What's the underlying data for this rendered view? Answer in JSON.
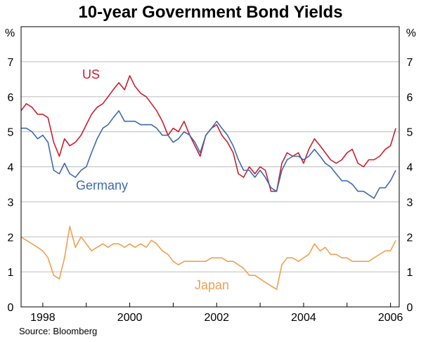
{
  "chart_data": {
    "type": "line",
    "title": "10-year Government Bond Yields",
    "ylabel_left": "%",
    "ylabel_right": "%",
    "ylim": [
      0,
      8
    ],
    "yticks": [
      0,
      1,
      2,
      3,
      4,
      5,
      6,
      7
    ],
    "xlim": [
      1997.5,
      2006.2
    ],
    "xticks": [
      1998,
      2000,
      2002,
      2004,
      2006
    ],
    "xtick_labels": [
      "1998",
      "2000",
      "2002",
      "2004",
      "2006"
    ],
    "grid": true,
    "series": [
      {
        "name": "US",
        "color": "#c8202f",
        "x": [
          1997.5,
          1997.62,
          1997.75,
          1997.88,
          1998.0,
          1998.12,
          1998.25,
          1998.38,
          1998.5,
          1998.62,
          1998.75,
          1998.88,
          1999.0,
          1999.12,
          1999.25,
          1999.38,
          1999.5,
          1999.62,
          1999.75,
          1999.88,
          2000.0,
          2000.12,
          2000.25,
          2000.38,
          2000.5,
          2000.62,
          2000.75,
          2000.88,
          2001.0,
          2001.12,
          2001.25,
          2001.38,
          2001.5,
          2001.62,
          2001.75,
          2001.88,
          2002.0,
          2002.12,
          2002.25,
          2002.38,
          2002.5,
          2002.62,
          2002.75,
          2002.88,
          2003.0,
          2003.12,
          2003.25,
          2003.38,
          2003.5,
          2003.62,
          2003.75,
          2003.88,
          2004.0,
          2004.12,
          2004.25,
          2004.38,
          2004.5,
          2004.62,
          2004.75,
          2004.88,
          2005.0,
          2005.12,
          2005.25,
          2005.38,
          2005.5,
          2005.62,
          2005.75,
          2005.88,
          2006.0,
          2006.12
        ],
        "values": [
          5.6,
          5.8,
          5.7,
          5.5,
          5.5,
          5.4,
          4.7,
          4.3,
          4.8,
          4.6,
          4.7,
          4.9,
          5.2,
          5.5,
          5.7,
          5.8,
          6.0,
          6.2,
          6.4,
          6.2,
          6.6,
          6.3,
          6.1,
          6.0,
          5.8,
          5.6,
          5.3,
          4.9,
          5.1,
          5.0,
          5.3,
          4.9,
          4.6,
          4.3,
          4.9,
          5.1,
          5.2,
          4.9,
          4.7,
          4.4,
          3.8,
          3.7,
          4.0,
          3.8,
          4.0,
          3.9,
          3.3,
          3.3,
          4.1,
          4.4,
          4.3,
          4.4,
          4.1,
          4.5,
          4.8,
          4.6,
          4.4,
          4.2,
          4.1,
          4.2,
          4.4,
          4.5,
          4.1,
          4.0,
          4.2,
          4.2,
          4.3,
          4.5,
          4.6,
          5.1
        ]
      },
      {
        "name": "Germany",
        "color": "#3d6bae",
        "x": [
          1997.5,
          1997.62,
          1997.75,
          1997.88,
          1998.0,
          1998.12,
          1998.25,
          1998.38,
          1998.5,
          1998.62,
          1998.75,
          1998.88,
          1999.0,
          1999.12,
          1999.25,
          1999.38,
          1999.5,
          1999.62,
          1999.75,
          1999.88,
          2000.0,
          2000.12,
          2000.25,
          2000.38,
          2000.5,
          2000.62,
          2000.75,
          2000.88,
          2001.0,
          2001.12,
          2001.25,
          2001.38,
          2001.5,
          2001.62,
          2001.75,
          2001.88,
          2002.0,
          2002.12,
          2002.25,
          2002.38,
          2002.5,
          2002.62,
          2002.75,
          2002.88,
          2003.0,
          2003.12,
          2003.25,
          2003.38,
          2003.5,
          2003.62,
          2003.75,
          2003.88,
          2004.0,
          2004.12,
          2004.25,
          2004.38,
          2004.5,
          2004.62,
          2004.75,
          2004.88,
          2005.0,
          2005.12,
          2005.25,
          2005.38,
          2005.5,
          2005.62,
          2005.75,
          2005.88,
          2006.0,
          2006.12
        ],
        "values": [
          5.1,
          5.1,
          5.0,
          4.8,
          4.9,
          4.7,
          3.9,
          3.8,
          4.1,
          3.8,
          3.7,
          3.9,
          4.0,
          4.4,
          4.8,
          5.1,
          5.2,
          5.4,
          5.6,
          5.3,
          5.3,
          5.3,
          5.2,
          5.2,
          5.2,
          5.1,
          4.9,
          4.9,
          4.7,
          4.8,
          5.0,
          4.9,
          4.7,
          4.4,
          4.9,
          5.1,
          5.3,
          5.1,
          4.9,
          4.6,
          4.2,
          3.9,
          3.9,
          3.7,
          3.9,
          3.7,
          3.4,
          3.3,
          3.9,
          4.2,
          4.3,
          4.3,
          4.2,
          4.3,
          4.5,
          4.3,
          4.1,
          4.0,
          3.8,
          3.6,
          3.6,
          3.5,
          3.3,
          3.3,
          3.2,
          3.1,
          3.4,
          3.4,
          3.6,
          3.9
        ]
      },
      {
        "name": "Japan",
        "color": "#f0a050",
        "x": [
          1997.5,
          1997.62,
          1997.75,
          1997.88,
          1998.0,
          1998.12,
          1998.25,
          1998.38,
          1998.5,
          1998.62,
          1998.75,
          1998.88,
          1999.0,
          1999.12,
          1999.25,
          1999.38,
          1999.5,
          1999.62,
          1999.75,
          1999.88,
          2000.0,
          2000.12,
          2000.25,
          2000.38,
          2000.5,
          2000.62,
          2000.75,
          2000.88,
          2001.0,
          2001.12,
          2001.25,
          2001.38,
          2001.5,
          2001.62,
          2001.75,
          2001.88,
          2002.0,
          2002.12,
          2002.25,
          2002.38,
          2002.5,
          2002.62,
          2002.75,
          2002.88,
          2003.0,
          2003.12,
          2003.25,
          2003.38,
          2003.5,
          2003.62,
          2003.75,
          2003.88,
          2004.0,
          2004.12,
          2004.25,
          2004.38,
          2004.5,
          2004.62,
          2004.75,
          2004.88,
          2005.0,
          2005.12,
          2005.25,
          2005.38,
          2005.5,
          2005.62,
          2005.75,
          2005.88,
          2006.0,
          2006.12
        ],
        "values": [
          2.0,
          1.9,
          1.8,
          1.7,
          1.6,
          1.4,
          0.9,
          0.8,
          1.4,
          2.3,
          1.7,
          2.0,
          1.8,
          1.6,
          1.7,
          1.8,
          1.7,
          1.8,
          1.8,
          1.7,
          1.8,
          1.7,
          1.8,
          1.7,
          1.9,
          1.8,
          1.6,
          1.5,
          1.3,
          1.2,
          1.3,
          1.3,
          1.3,
          1.3,
          1.3,
          1.4,
          1.4,
          1.4,
          1.3,
          1.3,
          1.2,
          1.1,
          0.9,
          0.9,
          0.8,
          0.7,
          0.6,
          0.5,
          1.2,
          1.4,
          1.4,
          1.3,
          1.4,
          1.5,
          1.8,
          1.6,
          1.7,
          1.5,
          1.5,
          1.4,
          1.4,
          1.3,
          1.3,
          1.3,
          1.3,
          1.4,
          1.5,
          1.6,
          1.6,
          1.9
        ]
      }
    ],
    "annotations": [
      "US",
      "Germany",
      "Japan"
    ]
  },
  "source_text": "Source: Bloomberg"
}
